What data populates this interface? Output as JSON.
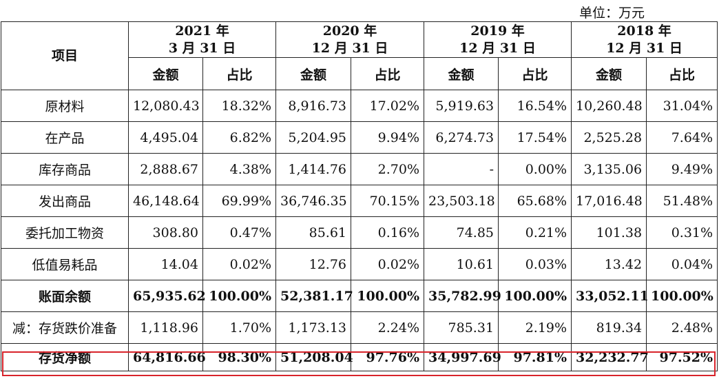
{
  "unit_label": "单位：万元",
  "header": {
    "item_col": "项目",
    "periods": [
      {
        "line1": "2021 年",
        "line2": "3 月 31 日"
      },
      {
        "line1": "2020 年",
        "line2": "12 月 31 日"
      },
      {
        "line1": "2019 年",
        "line2": "12 月 31 日"
      },
      {
        "line1": "2018 年",
        "line2": "12 月 31 日"
      }
    ],
    "amount_label": "金额",
    "ratio_label": "占比"
  },
  "rows": [
    {
      "label": "原材料",
      "values": [
        "12,080.43",
        "18.32%",
        "8,916.73",
        "17.02%",
        "5,919.63",
        "16.54%",
        "10,260.48",
        "31.04%"
      ]
    },
    {
      "label": "在产品",
      "values": [
        "4,495.04",
        "6.82%",
        "5,204.95",
        "9.94%",
        "6,274.73",
        "17.54%",
        "2,525.28",
        "7.64%"
      ]
    },
    {
      "label": "库存商品",
      "values": [
        "2,888.67",
        "4.38%",
        "1,414.76",
        "2.70%",
        "-",
        "0.00%",
        "3,135.06",
        "9.49%"
      ]
    },
    {
      "label": "发出商品",
      "values": [
        "46,148.64",
        "69.99%",
        "36,746.35",
        "70.15%",
        "23,503.18",
        "65.68%",
        "17,016.48",
        "51.48%"
      ]
    },
    {
      "label": "委托加工物资",
      "values": [
        "308.80",
        "0.47%",
        "85.61",
        "0.16%",
        "74.85",
        "0.21%",
        "101.38",
        "0.31%"
      ]
    },
    {
      "label": "低值易耗品",
      "values": [
        "14.04",
        "0.02%",
        "12.76",
        "0.02%",
        "10.61",
        "0.03%",
        "13.42",
        "0.04%"
      ]
    },
    {
      "label": "账面余额",
      "values": [
        "65,935.62",
        "100.00%",
        "52,381.17",
        "100.00%",
        "35,782.99",
        "100.00%",
        "33,052.11",
        "100.00%"
      ]
    },
    {
      "label": "减：存货跌价准备",
      "values": [
        "1,118.96",
        "1.70%",
        "1,173.13",
        "2.24%",
        "785.31",
        "2.19%",
        "819.34",
        "2.48%"
      ]
    },
    {
      "label": "存货净额",
      "values": [
        "64,816.66",
        "98.30%",
        "51,208.04",
        "97.76%",
        "34,997.69",
        "97.81%",
        "32,232.77",
        "97.52%"
      ]
    }
  ],
  "colors": {
    "highlight": "#d8232a",
    "border": "#222222"
  }
}
